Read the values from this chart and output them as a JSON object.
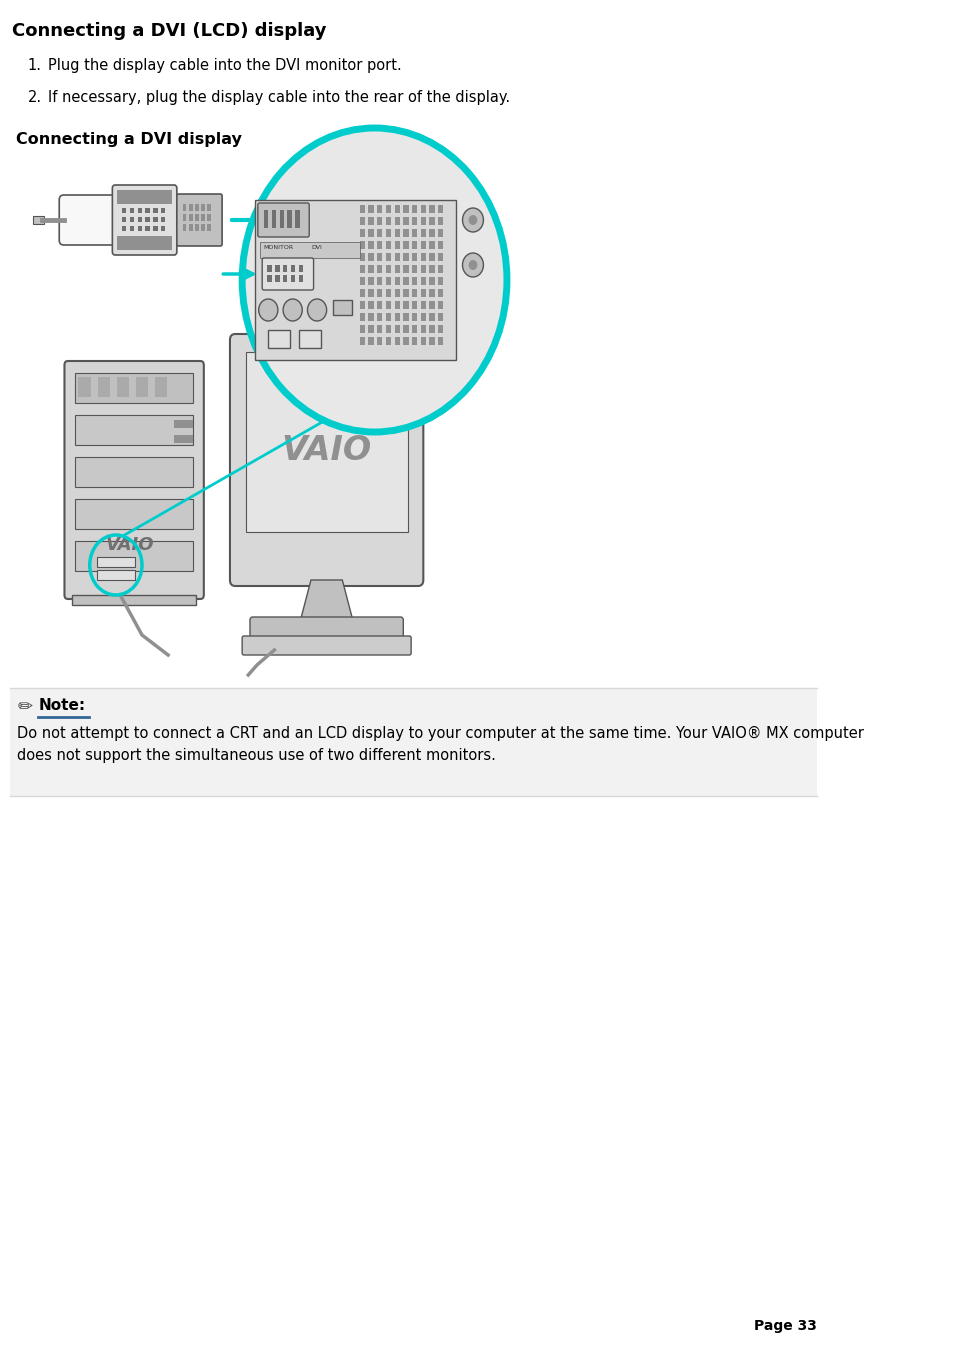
{
  "title": "Connecting a DVI (LCD) display",
  "step1": "Plug the display cable into the DVI monitor port.",
  "step2": "If necessary, plug the display cable into the rear of the display.",
  "subtitle": "Connecting a DVI display",
  "note_label": "Note:",
  "note_text": "Do not attempt to connect a CRT and an LCD display to your computer at the same time. Your VAIO® MX computer\ndoes not support the simultaneous use of two different monitors.",
  "page_number": "Page 33",
  "bg_color": "#ffffff",
  "note_bg_color": "#f2f2f2",
  "title_color": "#000000",
  "text_color": "#000000",
  "accent_color": "#00cccc",
  "note_underline_color": "#336699",
  "gray_light": "#e0e0e0",
  "gray_mid": "#c0c0c0",
  "gray_dark": "#909090",
  "gray_darker": "#707070",
  "line_color": "#555555"
}
